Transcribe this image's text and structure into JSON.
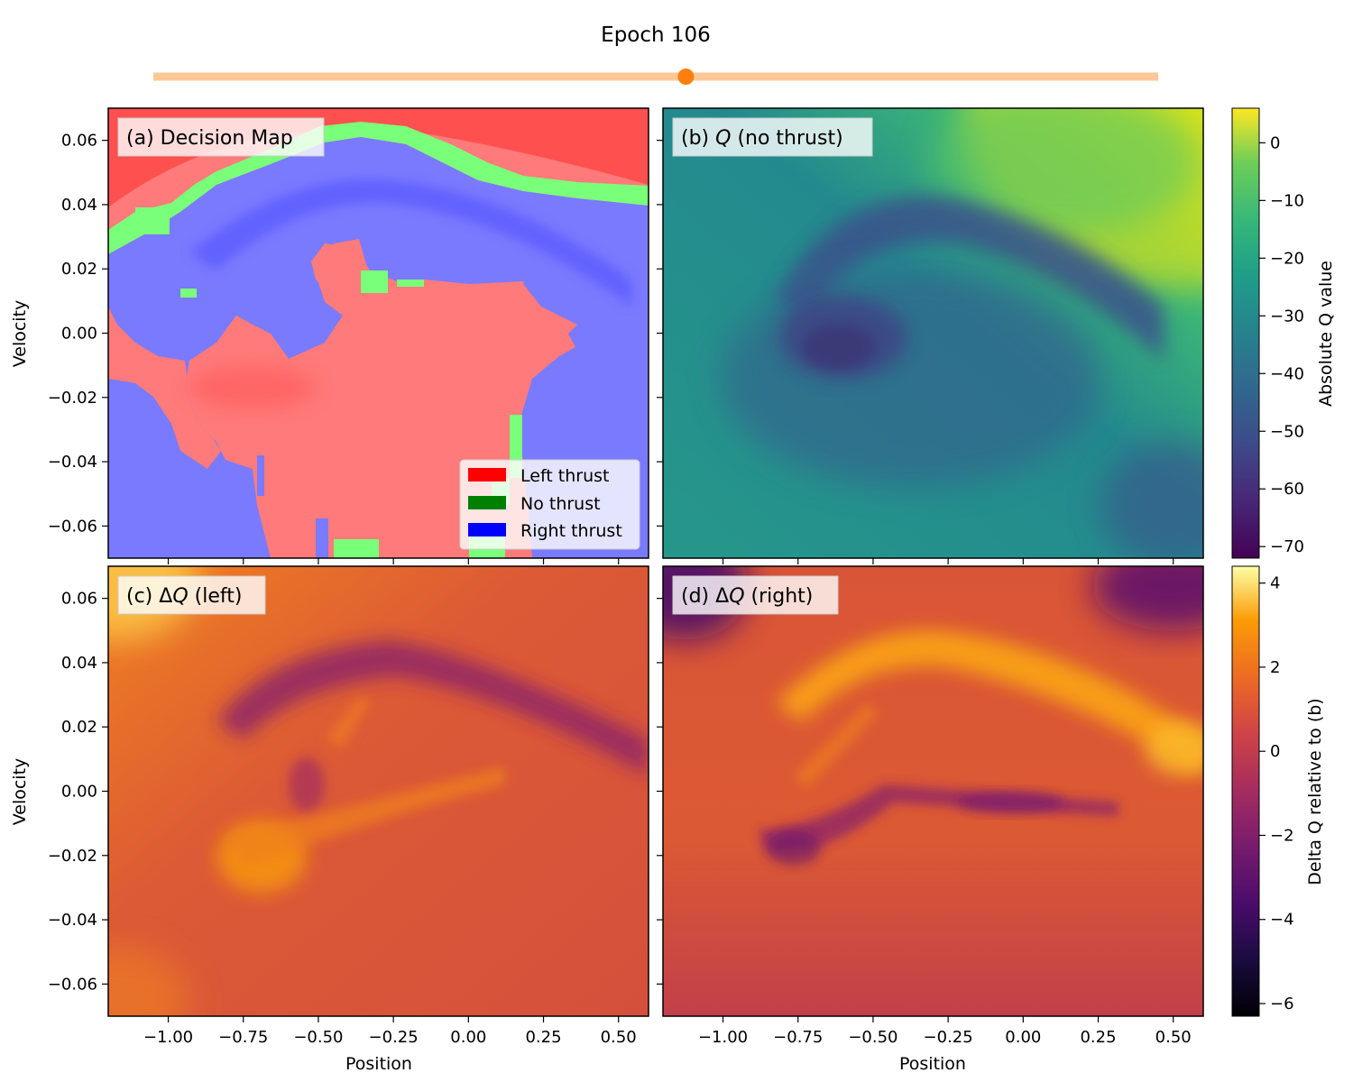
{
  "slider": {
    "label": "Epoch 106",
    "value_fraction": 0.53,
    "track_color": "#ffc896",
    "handle_color": "#ff7f0e"
  },
  "colors": {
    "left": "#ff0000",
    "none": "#008000",
    "right": "#0000ff"
  },
  "chart_data": [
    {
      "type": "heatmap",
      "panel": "a",
      "label": "(a) Decision Map",
      "xlim": [
        -1.2,
        0.6
      ],
      "ylim": [
        -0.07,
        0.07
      ],
      "xticks": [
        -1.0,
        -0.75,
        -0.5,
        -0.25,
        0.0,
        0.25,
        0.5
      ],
      "xtick_labels": [
        "−1.00",
        "−0.75",
        "−0.50",
        "−0.25",
        "0.00",
        "0.25",
        "0.50"
      ],
      "yticks": [
        0.06,
        0.04,
        0.02,
        0.0,
        -0.02,
        -0.04,
        -0.06
      ],
      "ytick_labels": [
        "0.06",
        "0.04",
        "0.02",
        "0.00",
        "−0.02",
        "−0.04",
        "−0.06"
      ],
      "ylabel": "Velocity",
      "xlabel": "",
      "legend": {
        "placement": "lower-right",
        "entries": [
          {
            "name": "Left thrust",
            "color": "#ff0000"
          },
          {
            "name": "No thrust",
            "color": "#008000"
          },
          {
            "name": "Right thrust",
            "color": "#0000ff"
          }
        ]
      }
    },
    {
      "type": "heatmap",
      "panel": "b",
      "label_prefix": "(b) ",
      "label_var": "Q",
      "label_suffix": " (no thrust)",
      "xlim": [
        -1.2,
        0.6
      ],
      "ylim": [
        -0.07,
        0.07
      ],
      "colormap": "viridis",
      "colorbar": {
        "label": "Absolute Q value",
        "range": [
          -72,
          6
        ],
        "ticks": [
          0,
          -10,
          -20,
          -30,
          -40,
          -50,
          -60,
          -70
        ],
        "tick_labels": [
          "0",
          "−10",
          "−20",
          "−30",
          "−40",
          "−50",
          "−60",
          "−70"
        ]
      }
    },
    {
      "type": "heatmap",
      "panel": "c",
      "label_prefix": "(c) Δ",
      "label_var": "Q",
      "label_suffix": " (left)",
      "xlim": [
        -1.2,
        0.6
      ],
      "ylim": [
        -0.07,
        0.07
      ],
      "colormap": "inferno",
      "xticks": [
        -1.0,
        -0.75,
        -0.5,
        -0.25,
        0.0,
        0.25,
        0.5
      ],
      "xtick_labels": [
        "−1.00",
        "−0.75",
        "−0.50",
        "−0.25",
        "0.00",
        "0.25",
        "0.50"
      ],
      "yticks": [
        0.06,
        0.04,
        0.02,
        0.0,
        -0.02,
        -0.04,
        -0.06
      ],
      "ytick_labels": [
        "0.06",
        "0.04",
        "0.02",
        "0.00",
        "−0.02",
        "−0.04",
        "−0.06"
      ],
      "xlabel": "Position",
      "ylabel": "Velocity"
    },
    {
      "type": "heatmap",
      "panel": "d",
      "label_prefix": "(d) Δ",
      "label_var": "Q",
      "label_suffix": " (right)",
      "xlim": [
        -1.2,
        0.6
      ],
      "ylim": [
        -0.07,
        0.07
      ],
      "colormap": "inferno",
      "xticks": [
        -1.0,
        -0.75,
        -0.5,
        -0.25,
        0.0,
        0.25,
        0.5
      ],
      "xtick_labels": [
        "−1.00",
        "−0.75",
        "−0.50",
        "−0.25",
        "0.00",
        "0.25",
        "0.50"
      ],
      "xlabel": "Position",
      "colorbar": {
        "label": "Delta Q relative to (b)",
        "range": [
          -6.3,
          4.4
        ],
        "ticks": [
          4,
          2,
          0,
          -2,
          -4,
          -6
        ],
        "tick_labels": [
          "4",
          "2",
          "0",
          "−2",
          "−4",
          "−6"
        ]
      }
    }
  ]
}
